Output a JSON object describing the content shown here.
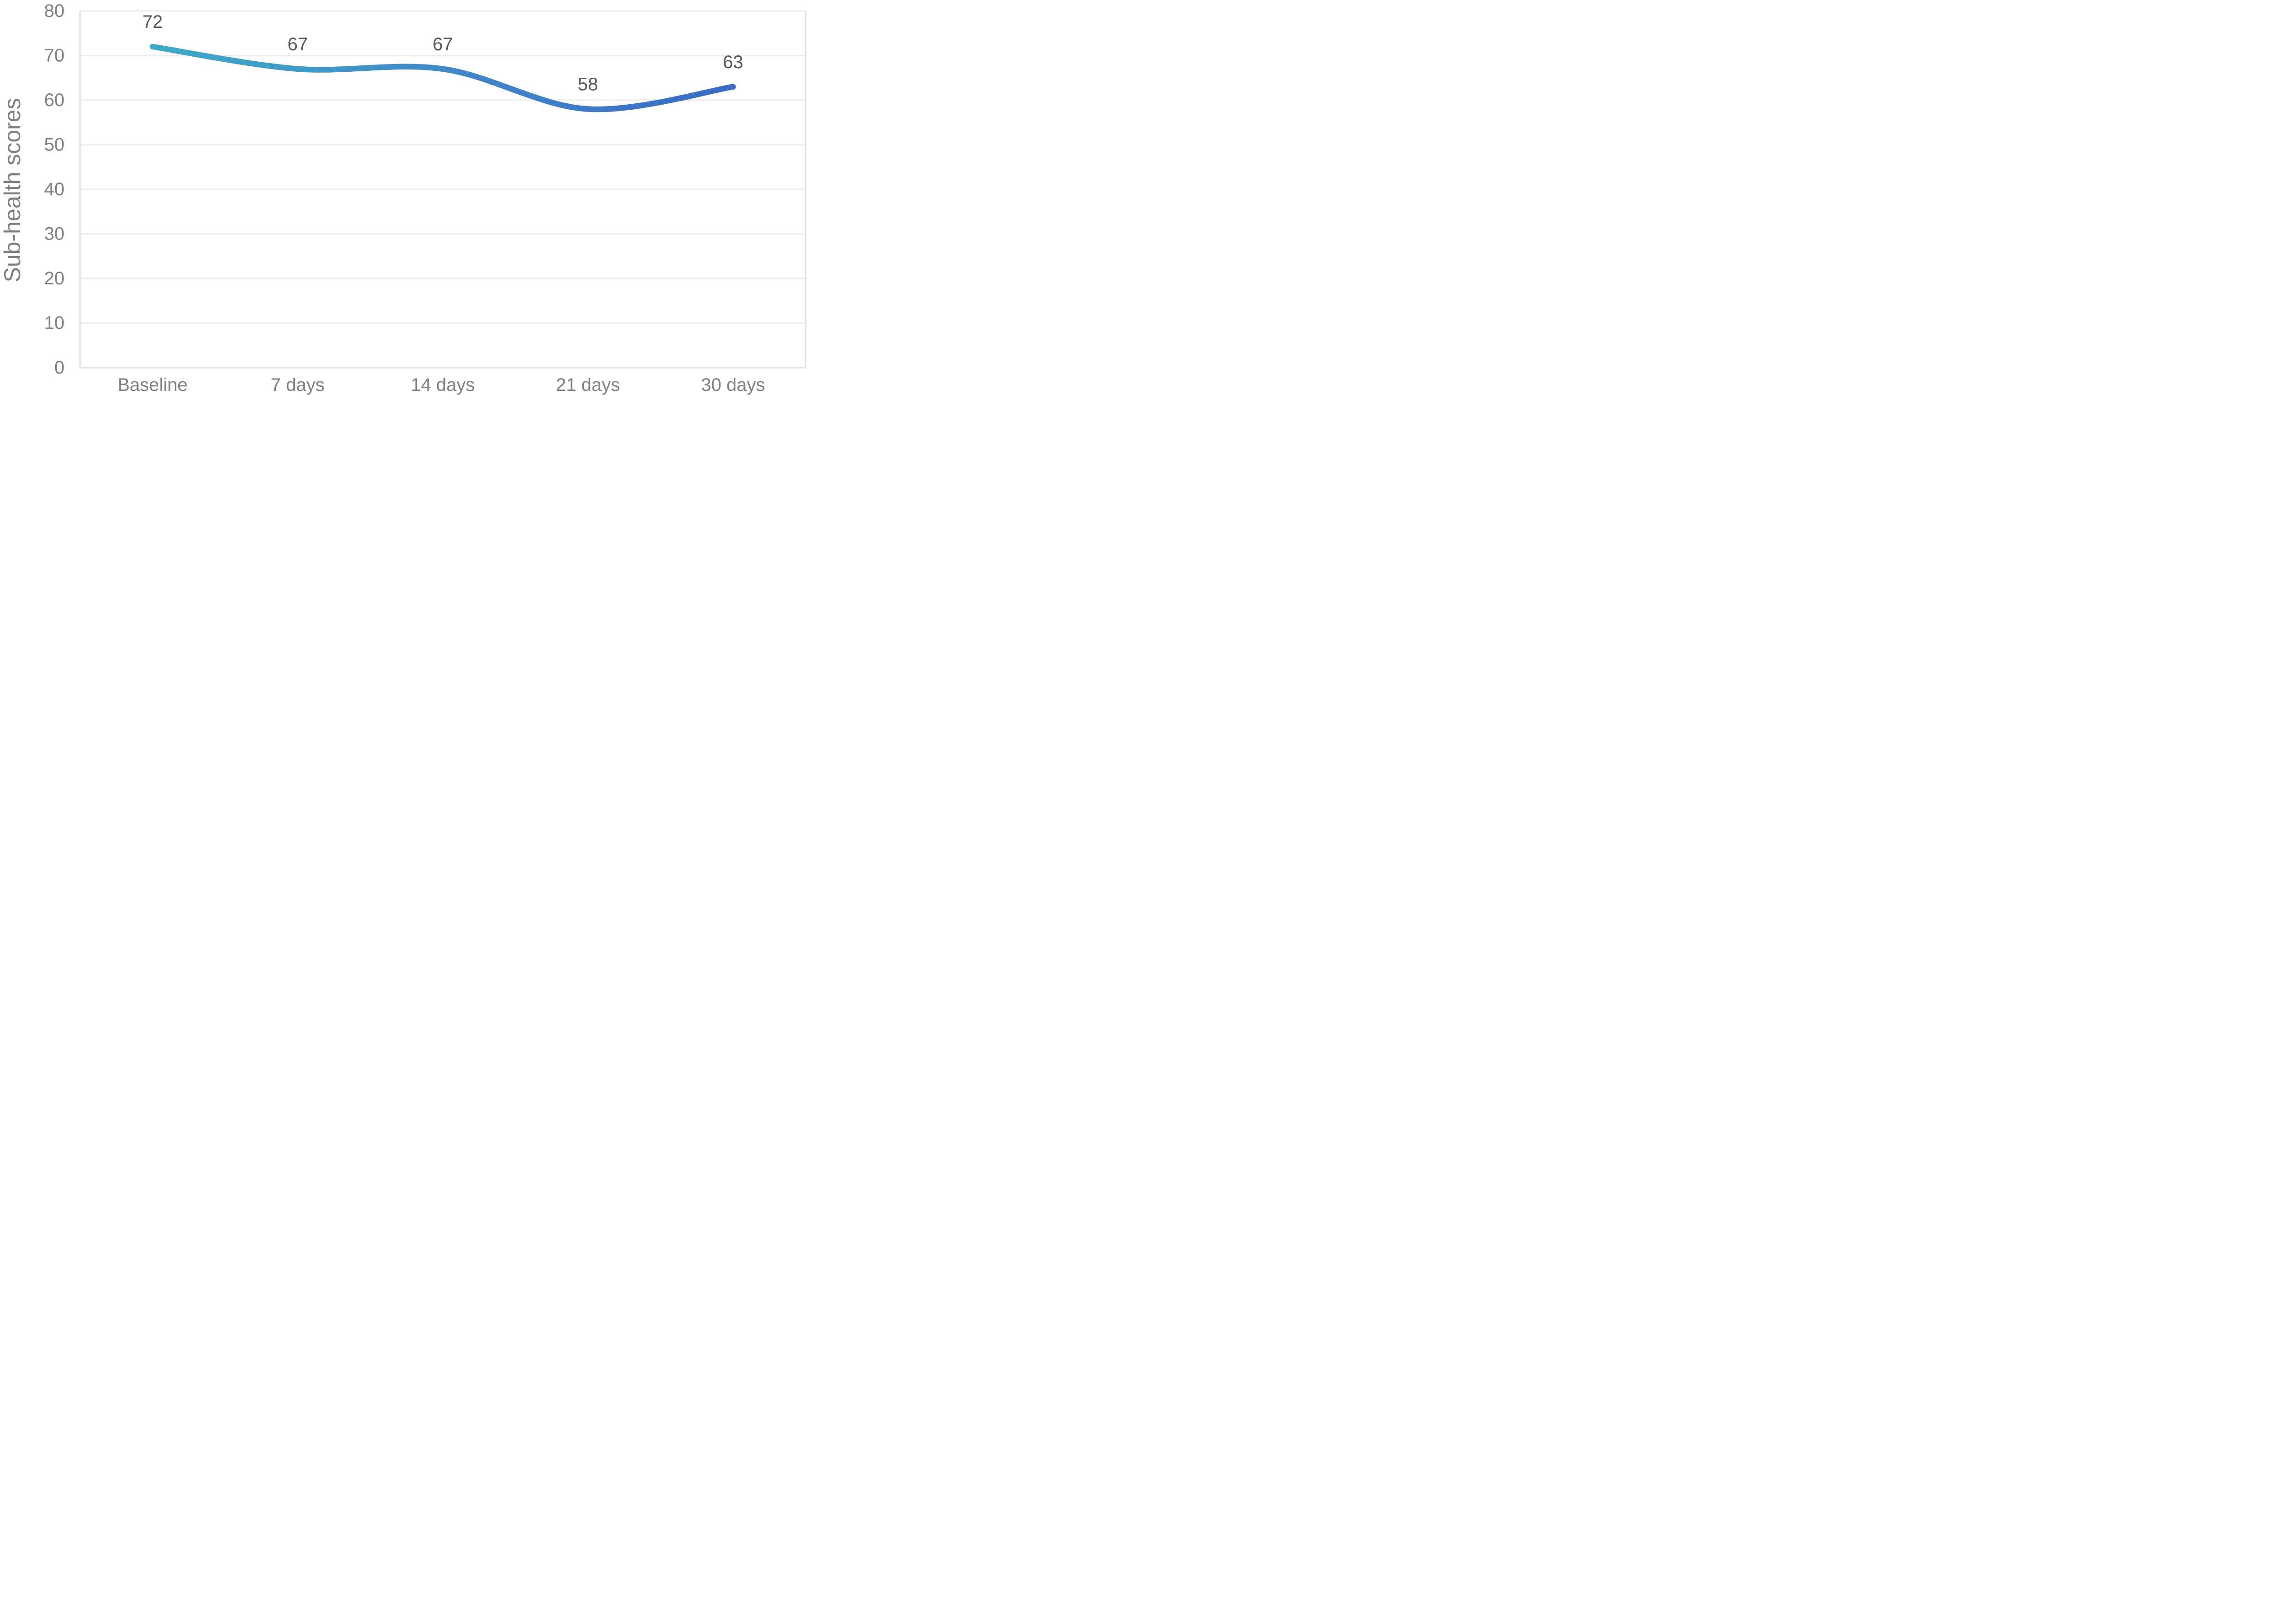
{
  "chart_data": {
    "type": "line",
    "smooth": true,
    "title": "",
    "xlabel": "",
    "ylabel": "Sub-health scores",
    "categories": [
      "Baseline",
      "7 days",
      "14 days",
      "21 days",
      "30 days"
    ],
    "series": [
      {
        "name": "Sub-health scores",
        "values": [
          72,
          67,
          67,
          58,
          63
        ]
      }
    ],
    "data_labels": [
      "72",
      "67",
      "67",
      "58",
      "63"
    ],
    "ylim": [
      0,
      80
    ],
    "ytick_step": 10,
    "ytick_labels": [
      "0",
      "10",
      "20",
      "30",
      "40",
      "50",
      "60",
      "70",
      "80"
    ],
    "grid": "horizontal",
    "legend": "none",
    "colors": {
      "line_gradient_start": "#3FAAC5",
      "line_gradient_mid": "#4189C8",
      "line_gradient_late": "#3E78C6",
      "line_gradient_end": "#3A6BC5",
      "gridline": "#EDEDED",
      "axis_line": "#E2E2E2",
      "axis_text": "#7F7F7F",
      "data_label_text": "#595959",
      "background": "#FFFFFF"
    }
  }
}
